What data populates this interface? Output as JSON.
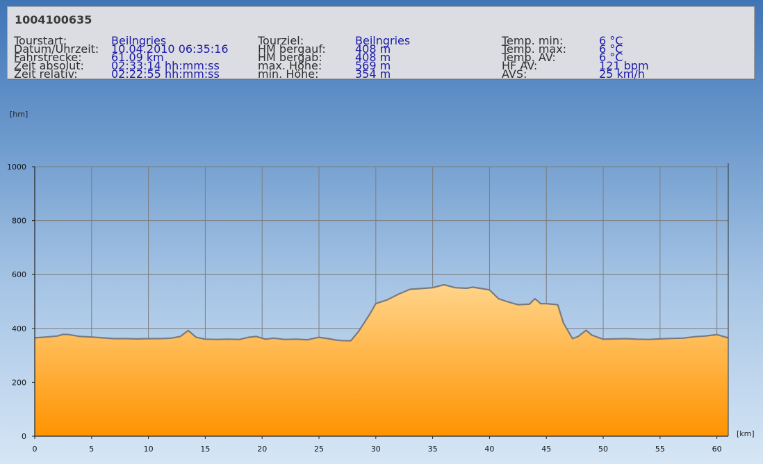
{
  "header": {
    "title": "1004100635",
    "columns": [
      [
        {
          "label": "Tourstart:",
          "value": "Beilngries"
        },
        {
          "label": "Datum/Uhrzeit:",
          "value": "10.04.2010 06:35:16"
        },
        {
          "label": "Fahrstrecke:",
          "value": "61.09 km"
        },
        {
          "label": "Zeit absolut:",
          "value": "02:33:14 hh:mm:ss"
        },
        {
          "label": "Zeit relativ:",
          "value": "02:22:55 hh:mm:ss"
        }
      ],
      [
        {
          "label": "Tourziel:",
          "value": "Beilngries"
        },
        {
          "label": "HM bergauf:",
          "value": "408 m"
        },
        {
          "label": "HM bergab:",
          "value": "408 m"
        },
        {
          "label": "max. Höhe:",
          "value": "569 m"
        },
        {
          "label": "min. Höhe:",
          "value": "354 m"
        }
      ],
      [
        {
          "label": "Temp. min:",
          "value": "6 °C"
        },
        {
          "label": "Temp. max:",
          "value": "6 °C"
        },
        {
          "label": "Temp. AV:",
          "value": "6 °C"
        },
        {
          "label": "HF AV:",
          "value": "121 bpm"
        },
        {
          "label": "AVS:",
          "value": "25 km/h"
        }
      ]
    ]
  },
  "colors": {
    "fill_top": "#ffd48a",
    "fill_bottom": "#ff9300",
    "line": "#7a7a7a",
    "grid": "#7d7d7d"
  },
  "chart_data": {
    "type": "area",
    "ylabel": "[hm]",
    "xlabel": "[km]",
    "xlim": [
      0,
      61
    ],
    "ylim": [
      0,
      1000
    ],
    "x_ticks": [
      0,
      5,
      10,
      15,
      20,
      25,
      30,
      35,
      40,
      45,
      50,
      55,
      60
    ],
    "y_ticks": [
      0,
      200,
      400,
      600,
      800,
      1000
    ],
    "grid": true,
    "series": [
      {
        "x": [
          0,
          1,
          2,
          2.5,
          3,
          4,
          5,
          6,
          7,
          8,
          9,
          10,
          11,
          12,
          12.8,
          13.5,
          14.2,
          15,
          16,
          17,
          18,
          18.8,
          19.5,
          20.3,
          21,
          22,
          23,
          24,
          25,
          25.8,
          26.5,
          27,
          27.8,
          28.5,
          29.5,
          30,
          31,
          32,
          33,
          34,
          35,
          36,
          37,
          38,
          38.5,
          39,
          40,
          40.8,
          41.5,
          42.5,
          43.5,
          44,
          44.5,
          45,
          46,
          46.5,
          47.3,
          47.8,
          48.5,
          49,
          50,
          51,
          52,
          53,
          54,
          55,
          56,
          57,
          58,
          59,
          60,
          61
        ],
        "values": [
          365,
          368,
          372,
          378,
          377,
          370,
          368,
          365,
          362,
          362,
          361,
          362,
          362,
          364,
          370,
          392,
          367,
          360,
          359,
          360,
          359,
          367,
          370,
          360,
          364,
          359,
          360,
          358,
          367,
          362,
          357,
          355,
          354,
          390,
          455,
          492,
          506,
          527,
          545,
          548,
          551,
          562,
          551,
          549,
          553,
          550,
          543,
          510,
          500,
          488,
          490,
          510,
          492,
          492,
          488,
          420,
          362,
          370,
          393,
          375,
          360,
          361,
          362,
          360,
          359,
          361,
          363,
          364,
          369,
          372,
          377,
          365
        ]
      }
    ]
  }
}
